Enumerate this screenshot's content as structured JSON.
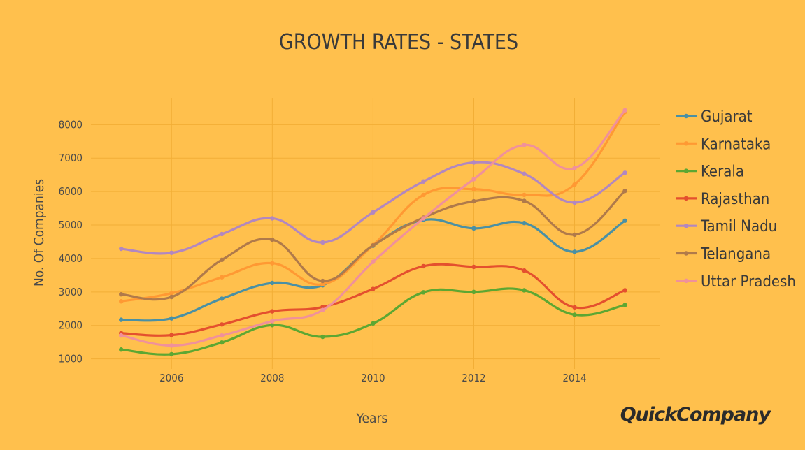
{
  "chart_data": {
    "type": "line",
    "title": "GROWTH RATES  -  STATES",
    "xlabel": "Years",
    "ylabel": "No. Of Companies",
    "x": [
      2005,
      2006,
      2007,
      2008,
      2009,
      2010,
      2011,
      2012,
      2013,
      2014,
      2015
    ],
    "xticks": [
      2006,
      2008,
      2010,
      2012,
      2014
    ],
    "yticks": [
      1000,
      2000,
      3000,
      4000,
      5000,
      6000,
      7000,
      8000
    ],
    "xlim": [
      2004.4,
      2015.7
    ],
    "ylim": [
      700,
      8800
    ],
    "grid": true,
    "legend_position": "right",
    "series": [
      {
        "name": "Gujarat",
        "color": "#4A90A4",
        "values": [
          2170,
          2210,
          2800,
          3270,
          3200,
          4380,
          5150,
          4900,
          5060,
          4200,
          5130
        ]
      },
      {
        "name": "Karnataka",
        "color": "#FF9933",
        "values": [
          2720,
          2960,
          3440,
          3860,
          3230,
          4400,
          5900,
          6070,
          5900,
          6210,
          8380
        ]
      },
      {
        "name": "Kerala",
        "color": "#5DA732",
        "values": [
          1280,
          1140,
          1490,
          2010,
          1660,
          2060,
          2990,
          3000,
          3050,
          2320,
          2610
        ]
      },
      {
        "name": "Rajasthan",
        "color": "#E4502E",
        "values": [
          1770,
          1710,
          2030,
          2420,
          2550,
          3090,
          3770,
          3750,
          3640,
          2540,
          3050
        ]
      },
      {
        "name": "Tamil Nadu",
        "color": "#B287C0",
        "values": [
          4290,
          4170,
          4730,
          5200,
          4480,
          5380,
          6300,
          6870,
          6530,
          5670,
          6560
        ]
      },
      {
        "name": "Telangana",
        "color": "#B07A4A",
        "values": [
          2930,
          2850,
          3960,
          4560,
          3330,
          4390,
          5220,
          5710,
          5720,
          4710,
          6020
        ]
      },
      {
        "name": "Uttar Pradesh",
        "color": "#F0919A",
        "values": [
          1700,
          1400,
          1700,
          2130,
          2460,
          3900,
          5200,
          6370,
          7390,
          6700,
          8430
        ]
      }
    ]
  },
  "branding": {
    "logo_text": "QuickCompany"
  }
}
